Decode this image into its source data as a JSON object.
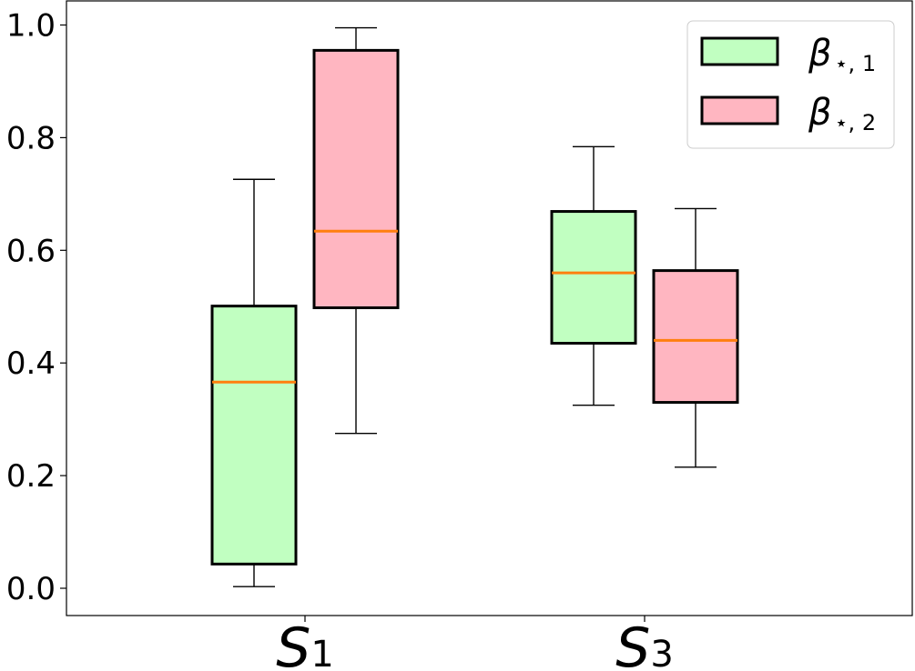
{
  "chart_data": {
    "type": "box",
    "categories": [
      {
        "base": "S",
        "sub": "1"
      },
      {
        "base": "S",
        "sub": "3"
      }
    ],
    "ylim": [
      -0.048,
      1.04
    ],
    "yticks": [
      0.0,
      0.2,
      0.4,
      0.6,
      0.8,
      1.0
    ],
    "ytick_labels": [
      "0.0",
      "0.2",
      "0.4",
      "0.6",
      "0.8",
      "1.0"
    ],
    "grid": false,
    "legend_position": "top-right",
    "series": [
      {
        "name": {
          "base": "β",
          "sub": "⋆, 1"
        },
        "color": "#c1ffc1",
        "stats": [
          {
            "whislo": 0.003,
            "q1": 0.043,
            "med": 0.366,
            "q3": 0.501,
            "whishi": 0.726
          },
          {
            "whislo": 0.325,
            "q1": 0.435,
            "med": 0.56,
            "q3": 0.669,
            "whishi": 0.784
          }
        ]
      },
      {
        "name": {
          "base": "β",
          "sub": "⋆, 2"
        },
        "color": "#ffb6c1",
        "stats": [
          {
            "whislo": 0.275,
            "q1": 0.498,
            "med": 0.634,
            "q3": 0.955,
            "whishi": 0.995
          },
          {
            "whislo": 0.215,
            "q1": 0.33,
            "med": 0.44,
            "q3": 0.564,
            "whishi": 0.674
          }
        ]
      }
    ],
    "median_color": "#ff7f0e",
    "title": "",
    "xlabel": "",
    "ylabel": ""
  }
}
